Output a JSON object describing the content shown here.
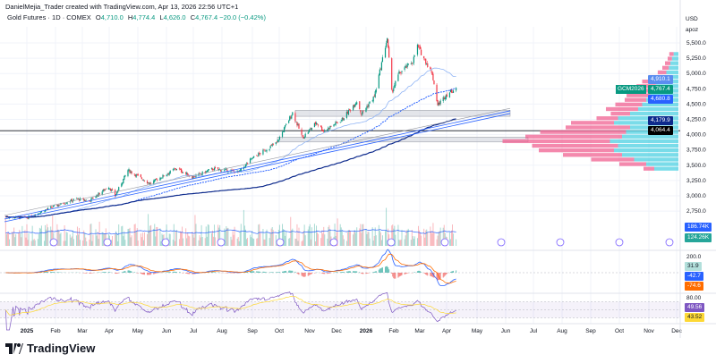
{
  "header": {
    "credit": "DanielMejia_Trader created with TradingView.com, Apr 13, 2026 22:56 UTC+1",
    "symbol": "Gold Futures · 1D · COMEX",
    "o_label": "O",
    "o": "4,710.0",
    "h_label": "H",
    "h": "4,774.4",
    "l_label": "L",
    "l": "4,626.0",
    "c_label": "C",
    "c": "4,767.4",
    "change": "−20.0 (−0.42%)"
  },
  "price_scale": {
    "currency": "USD",
    "unit": "apoz",
    "ticks": [
      "5,500.0",
      "5,250.0",
      "5,000.0",
      "4,750.0",
      "4,500.0",
      "4,250.0",
      "4,000.0",
      "3,750.0",
      "3,500.0",
      "3,250.0",
      "3,000.0",
      "2,750.0"
    ],
    "tags": {
      "ma_fast": "4,910.1",
      "symbol_tag": "GCM2026",
      "last": "4,767.4",
      "ma_mid": "4,680.8",
      "ma_slow": "4,179.9",
      "level": "4,064.4"
    },
    "volume_tags": [
      "186.74K",
      "124.26K"
    ],
    "macd_top": "200.0",
    "macd_tags": [
      "31.9",
      "-42.7",
      "-74.6"
    ],
    "rsi_top": "80.00",
    "rsi_tags": [
      "49.56",
      "43.52"
    ]
  },
  "time_axis": [
    "2025",
    "Feb",
    "Mar",
    "Apr",
    "May",
    "Jun",
    "Jul",
    "Aug",
    "Sep",
    "Oct",
    "Nov",
    "Dec",
    "2026",
    "Feb",
    "Mar",
    "Apr",
    "May",
    "Jun",
    "Jul",
    "Aug",
    "Sep",
    "Oct",
    "Nov",
    "Dec"
  ],
  "brand": "TradingView",
  "colors": {
    "up": "#089981",
    "down": "#f23645",
    "ma_fast": "#2962ff",
    "ma_slow": "#0d2a8c",
    "macd": "#2962ff",
    "signal": "#ff6d00",
    "rsi": "#7e57c2",
    "rsi_ma": "#fdd835",
    "vp_up": "#4dd0e1",
    "vp_down": "#f06292"
  },
  "chart_data": {
    "type": "candlestick",
    "symbol": "Gold Futures",
    "anchors": [
      [
        "2024-12-08",
        2660
      ],
      [
        "2025-01-01",
        2640
      ],
      [
        "2025-01-31",
        2830
      ],
      [
        "2025-02-24",
        2950
      ],
      [
        "2025-03-10",
        2920
      ],
      [
        "2025-03-31",
        3150
      ],
      [
        "2025-04-07",
        3000
      ],
      [
        "2025-04-21",
        3420
      ],
      [
        "2025-05-15",
        3200
      ],
      [
        "2025-06-13",
        3450
      ],
      [
        "2025-06-30",
        3300
      ],
      [
        "2025-07-22",
        3440
      ],
      [
        "2025-08-20",
        3390
      ],
      [
        "2025-09-02",
        3600
      ],
      [
        "2025-09-30",
        3870
      ],
      [
        "2025-10-17",
        4360
      ],
      [
        "2025-10-28",
        3950
      ],
      [
        "2025-11-12",
        4200
      ],
      [
        "2025-11-20",
        4060
      ],
      [
        "2025-12-10",
        4250
      ],
      [
        "2025-12-26",
        4550
      ],
      [
        "2025-12-31",
        4340
      ],
      [
        "2026-01-14",
        4620
      ],
      [
        "2026-01-28",
        5580
      ],
      [
        "2026-02-02",
        4700
      ],
      [
        "2026-02-10",
        5000
      ],
      [
        "2026-02-25",
        5200
      ],
      [
        "2026-03-02",
        5450
      ],
      [
        "2026-03-18",
        5000
      ],
      [
        "2026-03-24",
        4480
      ],
      [
        "2026-04-02",
        4650
      ],
      [
        "2026-04-13",
        4767.4
      ]
    ],
    "horizontal_level": 4064.4,
    "zones": [
      [
        4300,
        4400
      ],
      [
        3880,
        3960
      ]
    ],
    "volume_profile": {
      "price_from": 3400,
      "step": 75,
      "up": [
        30,
        40,
        55,
        70,
        80,
        75,
        85,
        70,
        65,
        60,
        80,
        75,
        60,
        50,
        45,
        40,
        35,
        30,
        28,
        25,
        20,
        15,
        12,
        10,
        8,
        6
      ],
      "down": [
        10,
        25,
        40,
        55,
        70,
        80,
        100,
        90,
        80,
        60,
        40,
        20,
        18,
        30,
        25,
        20,
        22,
        15,
        18,
        15,
        12,
        8,
        6,
        5,
        4,
        4
      ]
    },
    "ylim": [
      2500,
      5750
    ]
  }
}
